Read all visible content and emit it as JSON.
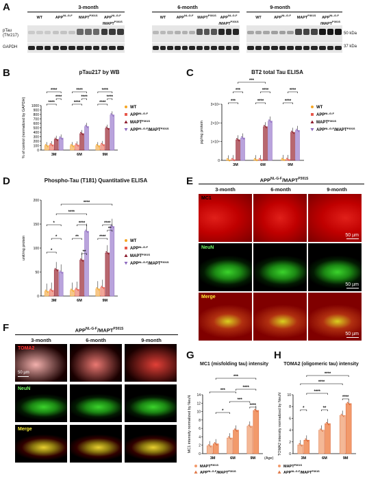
{
  "panels": {
    "A": "A",
    "B": "B",
    "C": "C",
    "D": "D",
    "E": "E",
    "F": "F",
    "G": "G",
    "H": "H"
  },
  "panel_a": {
    "groups": [
      "3-month",
      "6-month",
      "9-month"
    ],
    "lanes": [
      "WT",
      "APP",
      "MAPT",
      "APP"
    ],
    "lane_sups": [
      "",
      "NL-G-F",
      "P301S",
      "NL-G-F"
    ],
    "lane_extra": [
      "",
      "",
      "",
      "/MAPT"
    ],
    "lane_extra_sup": [
      "",
      "",
      "",
      "P301S"
    ],
    "rows": [
      "pTau\n(Thr217)",
      "GAPDH"
    ],
    "markers": [
      "50 kDa",
      "37 kDa"
    ]
  },
  "legend": {
    "wt": "WT",
    "app": "APP",
    "app_sup": "NL-G-F",
    "mapt": "MAPT",
    "mapt_sup": "P301S",
    "double": "APP",
    "double_sup": "NL-G-F",
    "double_mid": "/MAPT",
    "double_sup2": "P301S"
  },
  "colors": {
    "wt": "#f5a623",
    "app": "#e8574a",
    "mapt": "#8b1a2b",
    "double": "#8e6bbf",
    "bar_wt": "#f6c78a",
    "bar_app": "#f1a79a",
    "bar_mapt": "#b8676f",
    "bar_double": "#b9a3dc",
    "g_mapt": "#f4b896",
    "g_double": "#f29a6b"
  },
  "chart_data": [
    {
      "id": "B",
      "type": "bar",
      "title": "pTau217 by WB",
      "ylabel": "% of control (normalized by GAPDH)",
      "ylim": [
        0,
        1000
      ],
      "yticks": [
        "0",
        "100",
        "200",
        "300",
        "400",
        "500",
        "600",
        "700",
        "800",
        "900",
        "1000"
      ],
      "categories": [
        "3M",
        "6M",
        "9M"
      ],
      "series": [
        {
          "name": "WT",
          "values": [
            100,
            100,
            100
          ]
        },
        {
          "name": "APP NL-G-F",
          "values": [
            120,
            115,
            125
          ]
        },
        {
          "name": "MAPT P301S",
          "values": [
            240,
            370,
            490
          ]
        },
        {
          "name": "APP NL-G-F/MAPT P301S",
          "values": [
            270,
            530,
            790
          ]
        }
      ],
      "sig": "****"
    },
    {
      "id": "C",
      "type": "bar",
      "title": "BT2 total Tau ELISA",
      "ylabel": "pg/mg protein",
      "ylim": [
        0,
        30000
      ],
      "yticks": [
        "0",
        "1×10⁴",
        "2×10⁴",
        "3×10⁴"
      ],
      "categories": [
        "3M",
        "6M",
        "9M"
      ],
      "series": [
        {
          "name": "WT",
          "values": [
            300,
            400,
            500
          ]
        },
        {
          "name": "APP NL-G-F",
          "values": [
            400,
            400,
            500
          ]
        },
        {
          "name": "MAPT P301S",
          "values": [
            11000,
            18000,
            15000
          ]
        },
        {
          "name": "APP NL-G-F/MAPT P301S",
          "values": [
            12000,
            21000,
            16000
          ]
        }
      ],
      "sig_a": "***",
      "sig_b": "****"
    },
    {
      "id": "D",
      "type": "bar",
      "title": "Phospho-Tau (T181) Quantitative ELISA",
      "ylabel": "unit/mg protein",
      "ylim": [
        0,
        200
      ],
      "yticks": [
        "0",
        "50",
        "100",
        "150",
        "200"
      ],
      "categories": [
        "3M",
        "6M",
        "9M"
      ],
      "series": [
        {
          "name": "WT",
          "values": [
            10,
            12,
            15
          ]
        },
        {
          "name": "APP NL-G-F",
          "values": [
            12,
            14,
            18
          ]
        },
        {
          "name": "MAPT P301S",
          "values": [
            55,
            75,
            90
          ]
        },
        {
          "name": "APP NL-G-F/MAPT P301S",
          "values": [
            50,
            135,
            145
          ]
        }
      ],
      "sig_a": "*",
      "sig_b": "**",
      "sig_c": "****"
    },
    {
      "id": "G",
      "type": "bar",
      "title": "MC1 (misfolding tau) intensity",
      "ylabel": "MC1 intensity normalized by NeuN",
      "ylim": [
        0,
        15
      ],
      "yticks": [
        "0",
        "2",
        "4",
        "6",
        "8",
        "10",
        "12",
        "14"
      ],
      "categories": [
        "3M",
        "6M",
        "9M"
      ],
      "xlabel": "(Age)",
      "series": [
        {
          "name": "MAPT P301S",
          "values": [
            2.0,
            4.0,
            7.0
          ]
        },
        {
          "name": "APP NL-G-F/MAPT P301S",
          "values": [
            2.5,
            6.0,
            11.0
          ]
        }
      ],
      "sig_a": "*",
      "sig_b": "***",
      "sig_c": "****"
    },
    {
      "id": "H",
      "type": "bar",
      "title": "TOMA2 (oligomeric tau) intensity",
      "ylabel": "TOMA2 intensity normalized by NeuN",
      "ylim": [
        0,
        10
      ],
      "yticks": [
        "0",
        "2",
        "4",
        "6",
        "8",
        "10"
      ],
      "categories": [
        "3M",
        "6M",
        "9M"
      ],
      "series": [
        {
          "name": "MAPT P301S",
          "values": [
            1.5,
            4.0,
            6.5
          ]
        },
        {
          "name": "APP NL-G-F/MAPT P301S",
          "values": [
            2.3,
            5.1,
            8.5
          ]
        }
      ],
      "sig_a": "*",
      "sig_b": "**",
      "sig_c": "****"
    }
  ],
  "panel_e": {
    "title": "APP",
    "title_sup": "NL-G-F",
    "title_mid": "/MAPT",
    "title_sup2": "P301S",
    "cols": [
      "3-month",
      "6-month",
      "9-month"
    ],
    "rows": [
      "MC1",
      "NeuN",
      "Merge"
    ],
    "scale": "50 µm"
  },
  "panel_f": {
    "title": "APP",
    "title_sup": "NL-G-F",
    "title_mid": "/MAPT",
    "title_sup2": "P301S",
    "cols": [
      "3-month",
      "6-month",
      "9-month"
    ],
    "rows": [
      "TOMA2",
      "NeuN",
      "Merge"
    ],
    "scale": "50 µm"
  }
}
